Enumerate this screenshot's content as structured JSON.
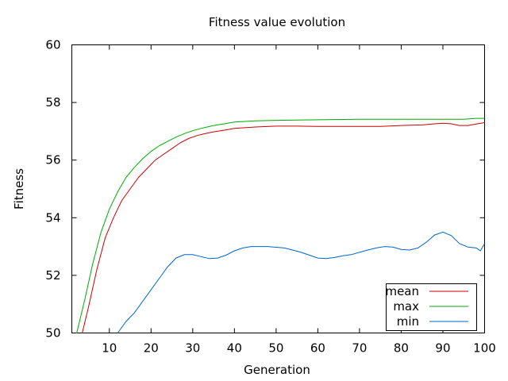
{
  "chart_data": {
    "type": "line",
    "title": "Fitness value evolution",
    "xlabel": "Generation",
    "ylabel": "Fitness",
    "xlim": [
      1,
      100
    ],
    "ylim": [
      50,
      60
    ],
    "xticks": [
      10,
      20,
      30,
      40,
      50,
      60,
      70,
      80,
      90,
      100
    ],
    "yticks": [
      50,
      52,
      54,
      56,
      58,
      60
    ],
    "grid": false,
    "legend_position": "bottom-right",
    "series": [
      {
        "name": "mean",
        "color": "#cc0000",
        "points": [
          [
            3,
            49.7
          ],
          [
            5,
            50.9
          ],
          [
            7,
            52.2
          ],
          [
            9,
            53.3
          ],
          [
            11,
            54.0
          ],
          [
            13,
            54.6
          ],
          [
            15,
            55.0
          ],
          [
            17,
            55.4
          ],
          [
            19,
            55.7
          ],
          [
            21,
            56.0
          ],
          [
            23,
            56.2
          ],
          [
            25,
            56.4
          ],
          [
            27,
            56.6
          ],
          [
            29,
            56.75
          ],
          [
            31,
            56.85
          ],
          [
            33,
            56.92
          ],
          [
            35,
            56.98
          ],
          [
            38,
            57.05
          ],
          [
            40,
            57.1
          ],
          [
            45,
            57.15
          ],
          [
            50,
            57.18
          ],
          [
            55,
            57.18
          ],
          [
            60,
            57.17
          ],
          [
            65,
            57.17
          ],
          [
            70,
            57.17
          ],
          [
            75,
            57.17
          ],
          [
            80,
            57.2
          ],
          [
            85,
            57.22
          ],
          [
            88,
            57.26
          ],
          [
            90,
            57.28
          ],
          [
            92,
            57.26
          ],
          [
            94,
            57.2
          ],
          [
            96,
            57.2
          ],
          [
            98,
            57.25
          ],
          [
            100,
            57.3
          ]
        ]
      },
      {
        "name": "max",
        "color": "#00aa00",
        "points": [
          [
            2,
            49.9
          ],
          [
            4,
            51.1
          ],
          [
            6,
            52.4
          ],
          [
            8,
            53.5
          ],
          [
            10,
            54.3
          ],
          [
            12,
            54.9
          ],
          [
            14,
            55.4
          ],
          [
            16,
            55.75
          ],
          [
            18,
            56.05
          ],
          [
            20,
            56.3
          ],
          [
            22,
            56.5
          ],
          [
            24,
            56.65
          ],
          [
            26,
            56.8
          ],
          [
            28,
            56.92
          ],
          [
            30,
            57.02
          ],
          [
            32,
            57.1
          ],
          [
            35,
            57.2
          ],
          [
            38,
            57.27
          ],
          [
            40,
            57.32
          ],
          [
            45,
            57.36
          ],
          [
            50,
            57.38
          ],
          [
            60,
            57.4
          ],
          [
            70,
            57.42
          ],
          [
            80,
            57.42
          ],
          [
            90,
            57.42
          ],
          [
            95,
            57.42
          ],
          [
            98,
            57.45
          ],
          [
            100,
            57.45
          ]
        ]
      },
      {
        "name": "min",
        "color": "#0066cc",
        "points": [
          [
            12,
            50.0
          ],
          [
            14,
            50.4
          ],
          [
            16,
            50.7
          ],
          [
            18,
            51.1
          ],
          [
            20,
            51.5
          ],
          [
            22,
            51.9
          ],
          [
            24,
            52.3
          ],
          [
            26,
            52.6
          ],
          [
            28,
            52.72
          ],
          [
            30,
            52.72
          ],
          [
            32,
            52.65
          ],
          [
            34,
            52.58
          ],
          [
            36,
            52.6
          ],
          [
            38,
            52.7
          ],
          [
            40,
            52.85
          ],
          [
            42,
            52.95
          ],
          [
            44,
            53.0
          ],
          [
            48,
            53.0
          ],
          [
            52,
            52.95
          ],
          [
            56,
            52.8
          ],
          [
            58,
            52.7
          ],
          [
            60,
            52.6
          ],
          [
            62,
            52.58
          ],
          [
            64,
            52.62
          ],
          [
            66,
            52.68
          ],
          [
            68,
            52.72
          ],
          [
            70,
            52.8
          ],
          [
            72,
            52.88
          ],
          [
            74,
            52.95
          ],
          [
            76,
            53.0
          ],
          [
            78,
            52.98
          ],
          [
            80,
            52.9
          ],
          [
            82,
            52.88
          ],
          [
            84,
            52.95
          ],
          [
            86,
            53.15
          ],
          [
            88,
            53.4
          ],
          [
            90,
            53.5
          ],
          [
            92,
            53.38
          ],
          [
            94,
            53.1
          ],
          [
            96,
            52.98
          ],
          [
            98,
            52.95
          ],
          [
            99,
            52.85
          ],
          [
            100,
            53.1
          ]
        ]
      }
    ]
  }
}
